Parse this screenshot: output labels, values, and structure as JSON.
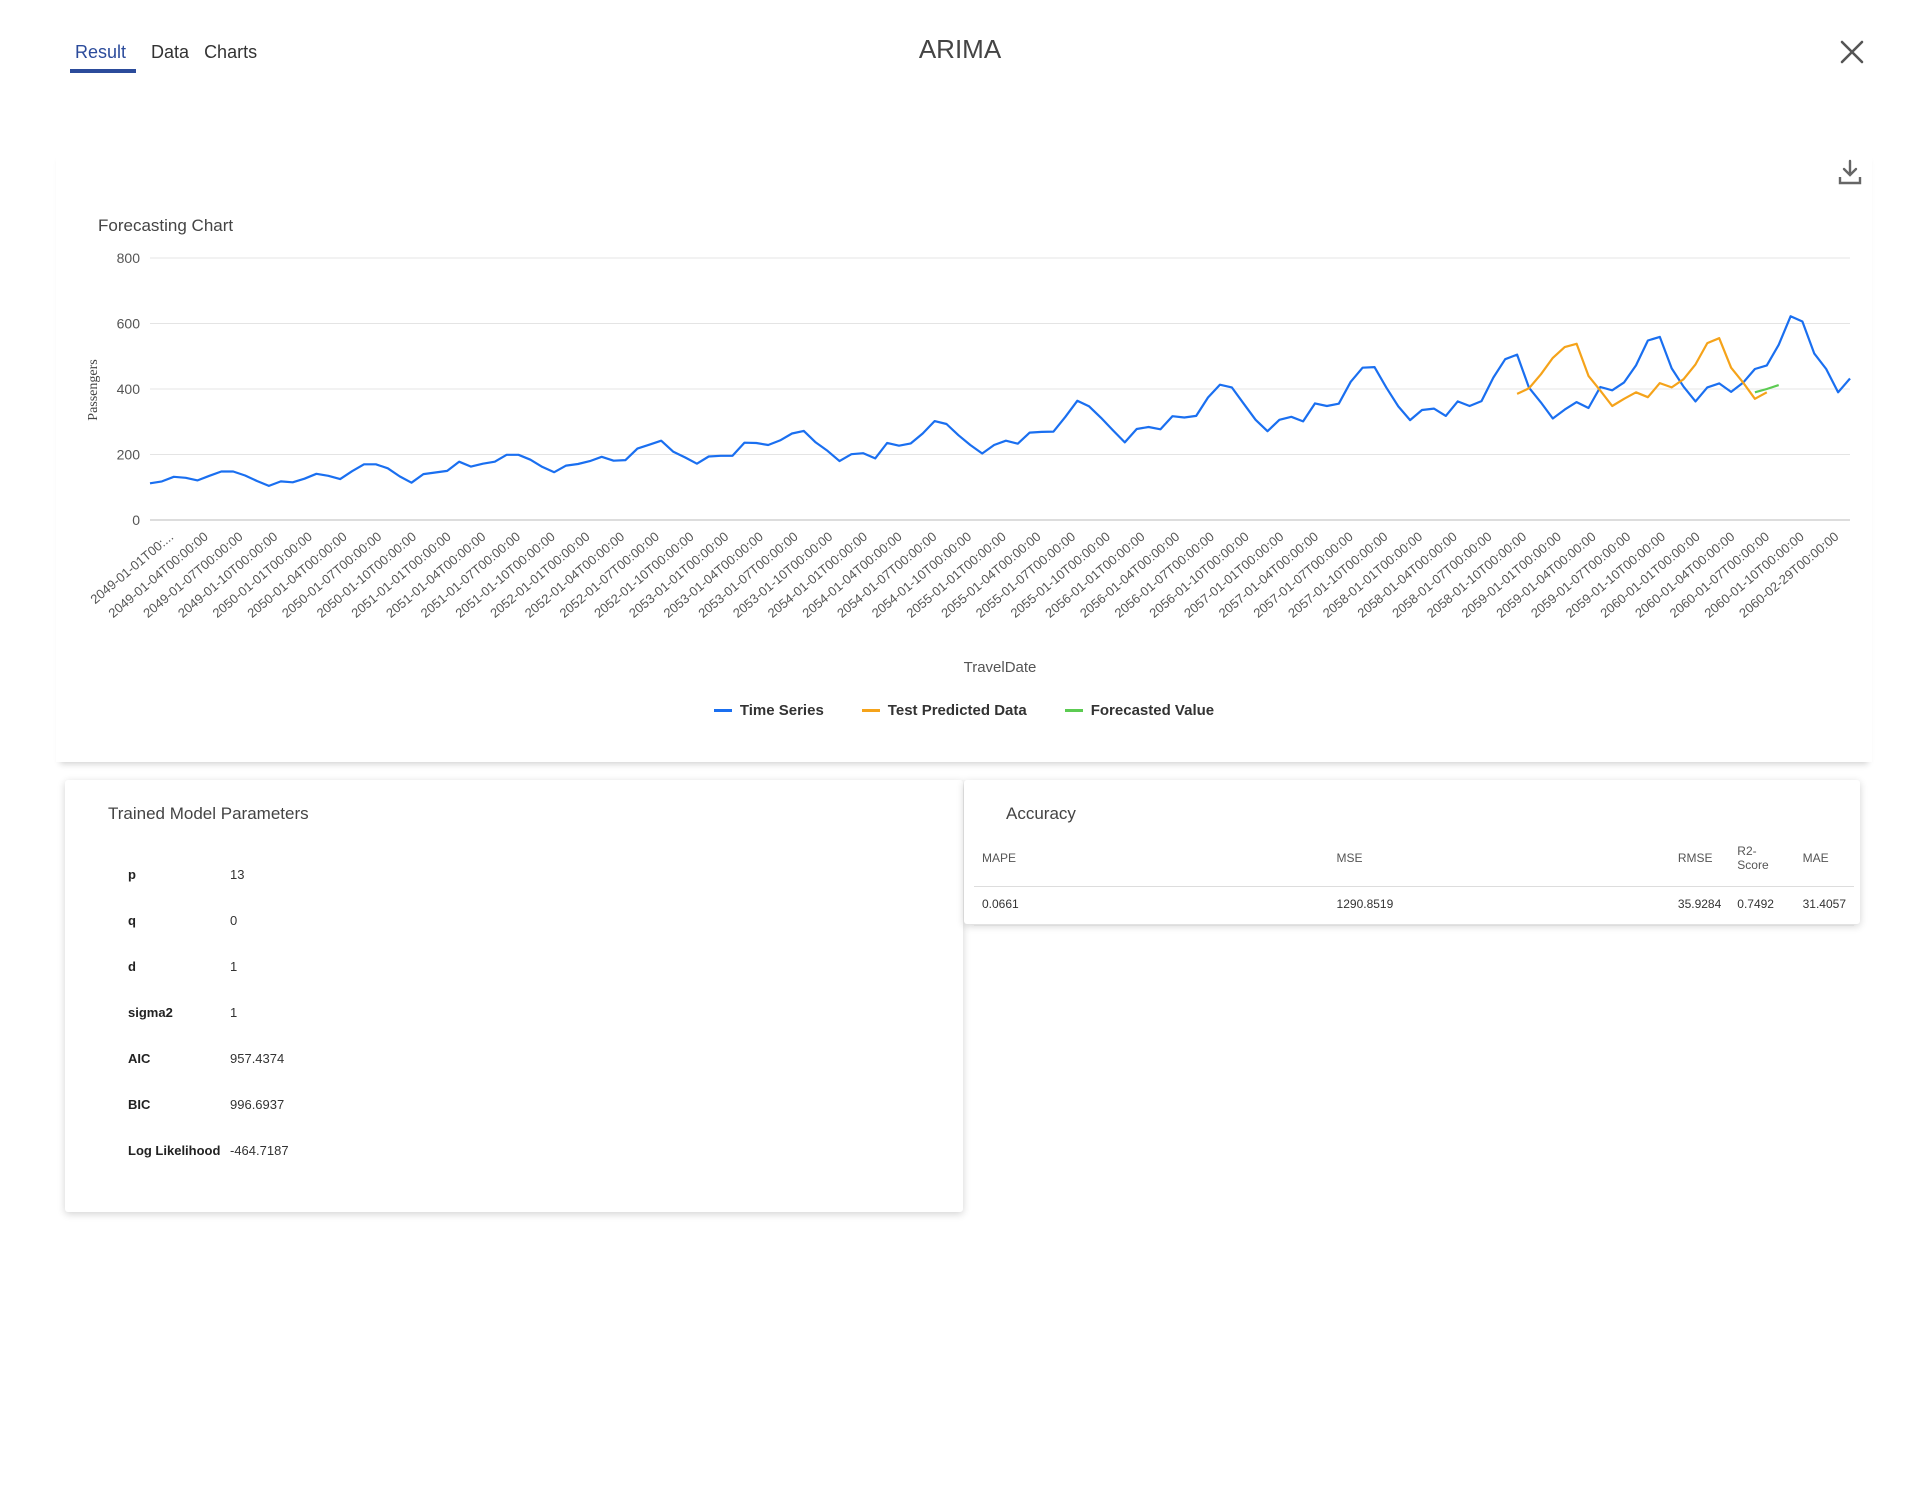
{
  "tabs": [
    {
      "label": "Result",
      "active": true
    },
    {
      "label": "Data",
      "active": false
    },
    {
      "label": "Charts",
      "active": false
    }
  ],
  "title": "ARIMA",
  "icons": {
    "close": "close-icon",
    "download": "download-icon"
  },
  "chart_title": "Forecasting Chart",
  "colors": {
    "time_series": "#1a6ff0",
    "test_predicted": "#f5a31a",
    "forecasted": "#5ccb52",
    "tab_active": "#2b4b9b"
  },
  "legend": [
    "Time Series",
    "Test Predicted Data",
    "Forecasted Value"
  ],
  "chart_data": {
    "type": "line",
    "xlabel": "TravelDate",
    "ylabel": "Passengers",
    "ylim": [
      0,
      800
    ],
    "yticks": [
      0,
      200,
      400,
      600,
      800
    ],
    "grid": true,
    "legend_position": "bottom",
    "x_tick_labels": [
      "2049-01-01T00:...",
      "2049-01-04T00:00:00",
      "2049-01-07T00:00:00",
      "2049-01-10T00:00:00",
      "2050-01-01T00:00:00",
      "2050-01-04T00:00:00",
      "2050-01-07T00:00:00",
      "2050-01-10T00:00:00",
      "2051-01-01T00:00:00",
      "2051-01-04T00:00:00",
      "2051-01-07T00:00:00",
      "2051-01-10T00:00:00",
      "2052-01-01T00:00:00",
      "2052-01-04T00:00:00",
      "2052-01-07T00:00:00",
      "2052-01-10T00:00:00",
      "2053-01-01T00:00:00",
      "2053-01-04T00:00:00",
      "2053-01-07T00:00:00",
      "2053-01-10T00:00:00",
      "2054-01-01T00:00:00",
      "2054-01-04T00:00:00",
      "2054-01-07T00:00:00",
      "2054-01-10T00:00:00",
      "2055-01-01T00:00:00",
      "2055-01-04T00:00:00",
      "2055-01-07T00:00:00",
      "2055-01-10T00:00:00",
      "2056-01-01T00:00:00",
      "2056-01-04T00:00:00",
      "2056-01-07T00:00:00",
      "2056-01-10T00:00:00",
      "2057-01-01T00:00:00",
      "2057-01-04T00:00:00",
      "2057-01-07T00:00:00",
      "2057-01-10T00:00:00",
      "2058-01-01T00:00:00",
      "2058-01-04T00:00:00",
      "2058-01-07T00:00:00",
      "2058-01-10T00:00:00",
      "2059-01-01T00:00:00",
      "2059-01-04T00:00:00",
      "2059-01-07T00:00:00",
      "2059-01-10T00:00:00",
      "2060-01-01T00:00:00",
      "2060-01-04T00:00:00",
      "2060-01-07T00:00:00",
      "2060-01-10T00:00:00",
      "2060-02-29T00:00:00"
    ],
    "series": [
      {
        "name": "Time Series",
        "values": [
          112,
          118,
          132,
          129,
          121,
          135,
          148,
          148,
          136,
          119,
          104,
          118,
          115,
          126,
          141,
          135,
          125,
          149,
          170,
          170,
          158,
          133,
          114,
          140,
          145,
          150,
          178,
          163,
          172,
          178,
          199,
          199,
          184,
          162,
          146,
          166,
          171,
          180,
          193,
          181,
          183,
          218,
          230,
          242,
          209,
          191,
          172,
          194,
          196,
          196,
          236,
          235,
          229,
          243,
          264,
          272,
          237,
          211,
          180,
          201,
          204,
          188,
          235,
          227,
          234,
          264,
          302,
          293,
          259,
          229,
          203,
          229,
          242,
          233,
          267,
          269,
          270,
          315,
          364,
          347,
          312,
          274,
          237,
          278,
          284,
          277,
          317,
          313,
          318,
          374,
          413,
          405,
          355,
          306,
          271,
          306,
          315,
          301,
          356,
          348,
          355,
          422,
          465,
          467,
          404,
          347,
          305,
          336,
          340,
          318,
          362,
          348,
          363,
          435,
          491,
          505,
          404,
          359,
          310,
          337,
          360,
          342,
          406,
          396,
          420,
          472,
          548,
          559,
          463,
          407,
          362,
          405,
          417,
          391,
          419,
          461,
          472,
          535,
          622,
          606,
          508,
          461,
          390,
          432
        ]
      },
      {
        "name": "Test Predicted Data",
        "start_index": 115,
        "values": [
          385,
          402,
          445,
          495,
          528,
          538,
          440,
          395,
          348,
          370,
          390,
          375,
          418,
          405,
          430,
          475,
          540,
          555,
          465,
          420,
          370,
          390
        ]
      },
      {
        "name": "Forecasted Value",
        "start_index": 135,
        "values": [
          390,
          400,
          412
        ]
      }
    ]
  },
  "params": {
    "title": "Trained Model Parameters",
    "rows": [
      {
        "name": "p",
        "value": "13"
      },
      {
        "name": "q",
        "value": "0"
      },
      {
        "name": "d",
        "value": "1"
      },
      {
        "name": "sigma2",
        "value": "1"
      },
      {
        "name": "AIC",
        "value": "957.4374"
      },
      {
        "name": "BIC",
        "value": "996.6937"
      },
      {
        "name": "Log Likelihood",
        "value": "-464.7187"
      }
    ]
  },
  "accuracy": {
    "title": "Accuracy",
    "headers": [
      "MAPE",
      "MSE",
      "RMSE",
      "R2-Score",
      "MAE"
    ],
    "values": [
      "0.0661",
      "1290.8519",
      "35.9284",
      "0.7492",
      "31.4057"
    ]
  }
}
